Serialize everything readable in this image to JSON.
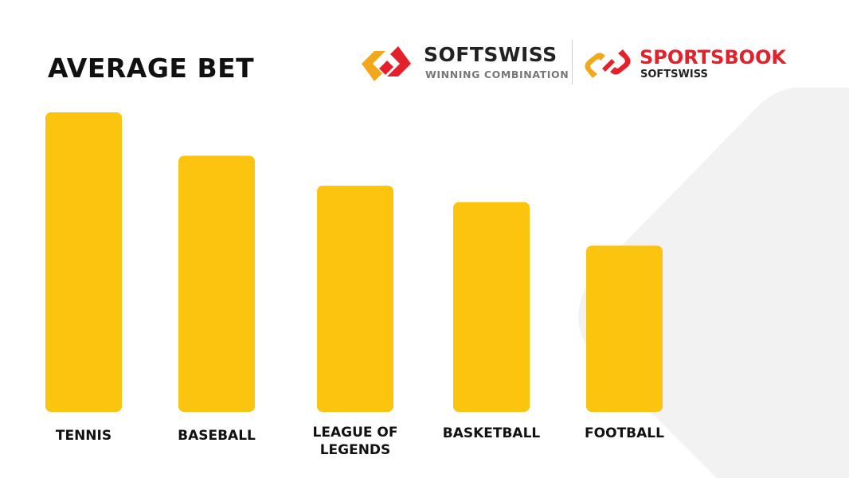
{
  "title": "AVERAGE BET",
  "logos": {
    "softswiss": {
      "name": "SOFTSWISS",
      "tagline": "WINNING COMBINATION",
      "icon": "softswiss-chain-logo-icon"
    },
    "sportsbook": {
      "name": "SPORTSBOOK",
      "sub": "SOFTSWISS",
      "icon": "sportsbook-chain-logo-icon"
    }
  },
  "colors": {
    "bar": "#fcc30f",
    "text": "#111111",
    "brand_red": "#e4202a",
    "brand_orange": "#f3a81b",
    "bg_shape": "#f2f2f2"
  },
  "chart_data": {
    "type": "bar",
    "title": "AVERAGE BET",
    "categories": [
      "TENNIS",
      "BASEBALL",
      "LEAGUE OF LEGENDS",
      "BASKETBALL",
      "FOOTBALL"
    ],
    "category_lines": [
      [
        "TENNIS"
      ],
      [
        "BASEBALL"
      ],
      [
        "LEAGUE OF",
        "LEGENDS"
      ],
      [
        "BASKETBALL"
      ],
      [
        "FOOTBALL"
      ]
    ],
    "values": [
      100,
      85.5,
      75.5,
      70,
      55.5
    ],
    "ylim": [
      0,
      100
    ],
    "grid": false,
    "legend": "none",
    "xlabel": "",
    "ylabel": ""
  }
}
